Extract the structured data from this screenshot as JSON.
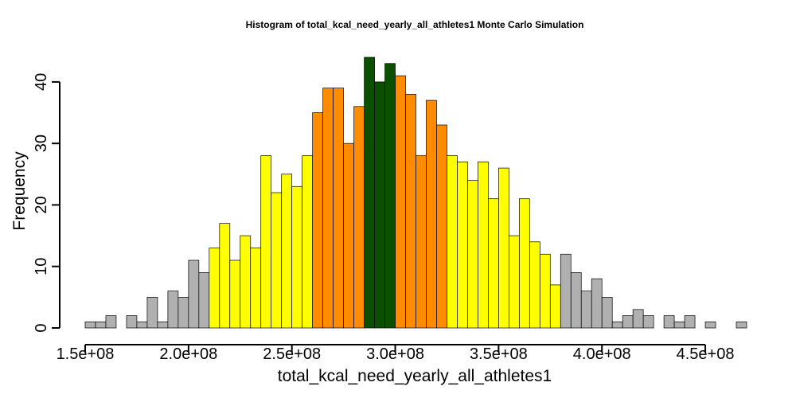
{
  "chart_data": {
    "type": "bar",
    "title": "Histogram of  total_kcal_need_yearly_all_athletes1  Monte Carlo Simulation",
    "xlabel": "total_kcal_need_yearly_all_athletes1",
    "ylabel": "Frequency",
    "bin_start": 150000000,
    "bin_width": 5000000,
    "values": [
      1,
      1,
      2,
      0,
      2,
      1,
      5,
      1,
      6,
      5,
      11,
      9,
      13,
      17,
      11,
      15,
      13,
      28,
      22,
      25,
      23,
      28,
      35,
      39,
      39,
      30,
      36,
      44,
      40,
      43,
      41,
      38,
      28,
      37,
      33,
      28,
      27,
      24,
      27,
      21,
      26,
      15,
      21,
      14,
      12,
      7,
      12,
      9,
      6,
      8,
      5,
      1,
      2,
      3,
      2,
      0,
      2,
      1,
      2,
      0,
      1,
      0,
      0,
      1
    ],
    "colors": {
      "tail": "#b0b0b0",
      "outer": "#ffff00",
      "inner": "#ff8c00",
      "center": "#0b4f00"
    },
    "color_bands": [
      {
        "from": 150000000,
        "to": 210000000,
        "color": "tail"
      },
      {
        "from": 210000000,
        "to": 260000000,
        "color": "outer"
      },
      {
        "from": 260000000,
        "to": 285000000,
        "color": "inner"
      },
      {
        "from": 285000000,
        "to": 300000000,
        "color": "center"
      },
      {
        "from": 300000000,
        "to": 325000000,
        "color": "inner"
      },
      {
        "from": 325000000,
        "to": 380000000,
        "color": "outer"
      },
      {
        "from": 380000000,
        "to": 470000000,
        "color": "tail"
      }
    ],
    "xlim": [
      150000000,
      470000000
    ],
    "ylim": [
      0,
      44
    ],
    "x_ticks": [
      150000000,
      200000000,
      250000000,
      300000000,
      350000000,
      400000000,
      450000000
    ],
    "x_tick_labels": [
      "1.5e+08",
      "2.0e+08",
      "2.5e+08",
      "3.0e+08",
      "3.5e+08",
      "4.0e+08",
      "4.5e+08"
    ],
    "y_ticks": [
      0,
      10,
      20,
      30,
      40
    ],
    "y_tick_labels": [
      "0",
      "10",
      "20",
      "30",
      "40"
    ],
    "grid": false,
    "legend": "none"
  }
}
